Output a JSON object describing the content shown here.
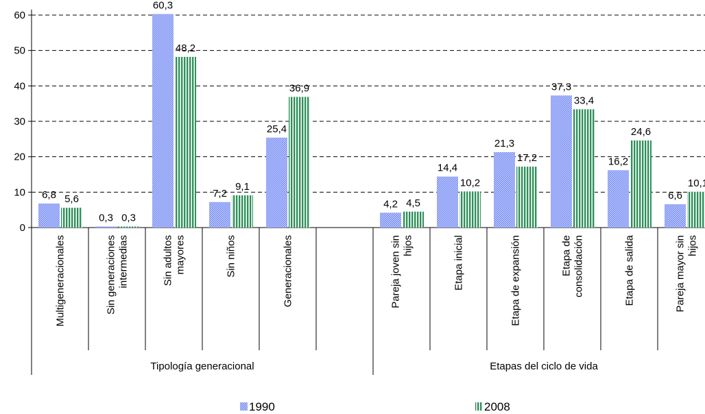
{
  "chart_data": {
    "type": "bar",
    "categories": [
      [
        "Multigeneracionales"
      ],
      [
        "Sin generaciones",
        "intermedias"
      ],
      [
        "Sin adultos",
        "mayores"
      ],
      [
        "Sin niños"
      ],
      [
        "Generacionales"
      ],
      [],
      [
        "Pareja joven sin",
        "hijos"
      ],
      [
        "Etapa inicial"
      ],
      [
        "Etapa de expansión"
      ],
      [
        "Etapa de",
        "consolidación"
      ],
      [
        "Etapa de salida"
      ],
      [
        "Pareja mayor sin",
        "hijos"
      ]
    ],
    "groups": [
      {
        "label": "Tipología generacional",
        "start": 0,
        "end": 6
      },
      {
        "label": "Etapas del ciclo de vida",
        "start": 6,
        "end": 12
      }
    ],
    "series": [
      {
        "name": "1990",
        "color": "#7f93f0",
        "values": [
          6.8,
          0.3,
          60.3,
          7.2,
          25.4,
          null,
          4.2,
          14.4,
          21.3,
          37.3,
          16.2,
          6.6
        ],
        "labels": [
          "6,8",
          "0,3",
          "60,3",
          "7,2",
          "25,4",
          null,
          "4,2",
          "14,4",
          "21,3",
          "37,3",
          "16,2",
          "6,6"
        ]
      },
      {
        "name": "2008",
        "color": "#2f8f5a",
        "values": [
          5.6,
          0.3,
          48.2,
          9.1,
          36.9,
          null,
          4.5,
          10.2,
          17.2,
          33.4,
          24.6,
          10.1
        ],
        "labels": [
          "5,6",
          "0,3",
          "48,2",
          "9,1",
          "36,9",
          null,
          "4,5",
          "10,2",
          "17,2",
          "33,4",
          "24,6",
          "10,1"
        ]
      }
    ],
    "yticks": [
      "0",
      "10",
      "20",
      "30",
      "40",
      "50",
      "60"
    ],
    "ylim": [
      0,
      60
    ],
    "grid": true,
    "legend_position": "bottom"
  }
}
